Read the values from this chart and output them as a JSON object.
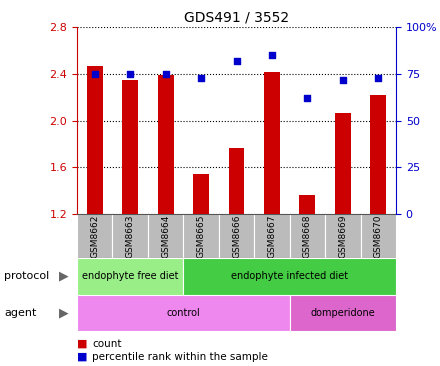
{
  "title": "GDS491 / 3552",
  "samples": [
    "GSM8662",
    "GSM8663",
    "GSM8664",
    "GSM8665",
    "GSM8666",
    "GSM8667",
    "GSM8668",
    "GSM8669",
    "GSM8670"
  ],
  "counts": [
    2.47,
    2.35,
    2.39,
    1.54,
    1.77,
    2.42,
    1.36,
    2.07,
    2.22
  ],
  "percentiles": [
    75,
    75,
    75,
    73,
    82,
    85,
    62,
    72,
    73
  ],
  "ylim_left": [
    1.2,
    2.8
  ],
  "ylim_right": [
    0,
    100
  ],
  "yticks_left": [
    1.2,
    1.6,
    2.0,
    2.4,
    2.8
  ],
  "yticks_right": [
    0,
    25,
    50,
    75,
    100
  ],
  "bar_color": "#cc0000",
  "dot_color": "#0000cc",
  "bar_width": 0.45,
  "protocol_free_color": "#99ee88",
  "protocol_infected_color": "#44cc44",
  "agent_control_color": "#ee88ee",
  "agent_domperidone_color": "#dd66cc",
  "protocol_row_label": "protocol",
  "agent_row_label": "agent",
  "legend_count_label": "count",
  "legend_percentile_label": "percentile rank within the sample",
  "bg_color": "#ffffff",
  "sample_bg_color": "#bbbbbb",
  "left_axis_color": "#cc0000",
  "right_axis_color": "#0000cc",
  "title_fontsize": 10,
  "tick_fontsize": 8,
  "label_fontsize": 8
}
